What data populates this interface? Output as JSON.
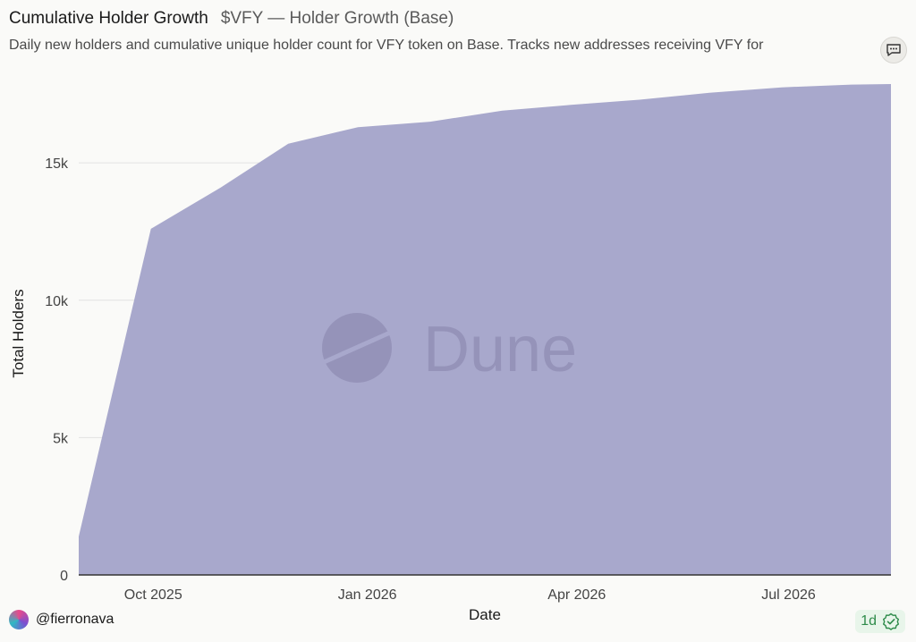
{
  "header": {
    "title": "Cumulative Holder Growth",
    "subtitle": "$VFY — Holder Growth (Base)",
    "description": "Daily new holders and cumulative unique holder count for VFY token on Base. Tracks new addresses receiving VFY for"
  },
  "watermark": {
    "text": "Dune"
  },
  "footer": {
    "username": "@fierronava",
    "refresh": "1d"
  },
  "colors": {
    "area": "#a8a8cc",
    "grid": "#e2e2e2",
    "axis": "#333333",
    "watermark": "#8e8bb2"
  },
  "icons": {
    "comment": "comment-icon",
    "refresh": "check-badge-icon"
  },
  "chart_data": {
    "type": "area",
    "xlabel": "Date",
    "ylabel": "Total Holders",
    "x": [
      "2025-08-30",
      "2025-09-30",
      "2025-10-30",
      "2025-11-28",
      "2025-12-28",
      "2026-01-28",
      "2026-02-28",
      "2026-03-28",
      "2026-04-28",
      "2026-05-28",
      "2026-06-28",
      "2026-07-28",
      "2026-08-14"
    ],
    "series": [
      {
        "values": [
          1400,
          12600,
          14100,
          15700,
          16300,
          16500,
          16900,
          17100,
          17300,
          17550,
          17750,
          17850,
          17870
        ]
      }
    ],
    "ylim": [
      0,
      18000
    ],
    "xlim": [
      "2025-08-30",
      "2026-08-14"
    ],
    "y_ticks": [
      0,
      5000,
      10000,
      15000
    ],
    "y_tick_labels": [
      "0",
      "5k",
      "10k",
      "15k"
    ],
    "x_ticks": [
      "2025-10-01",
      "2026-01-01",
      "2026-04-01",
      "2026-07-01"
    ],
    "x_tick_labels": [
      "Oct 2025",
      "Jan 2026",
      "Apr 2026",
      "Jul 2026"
    ],
    "grid": true,
    "legend": false
  }
}
